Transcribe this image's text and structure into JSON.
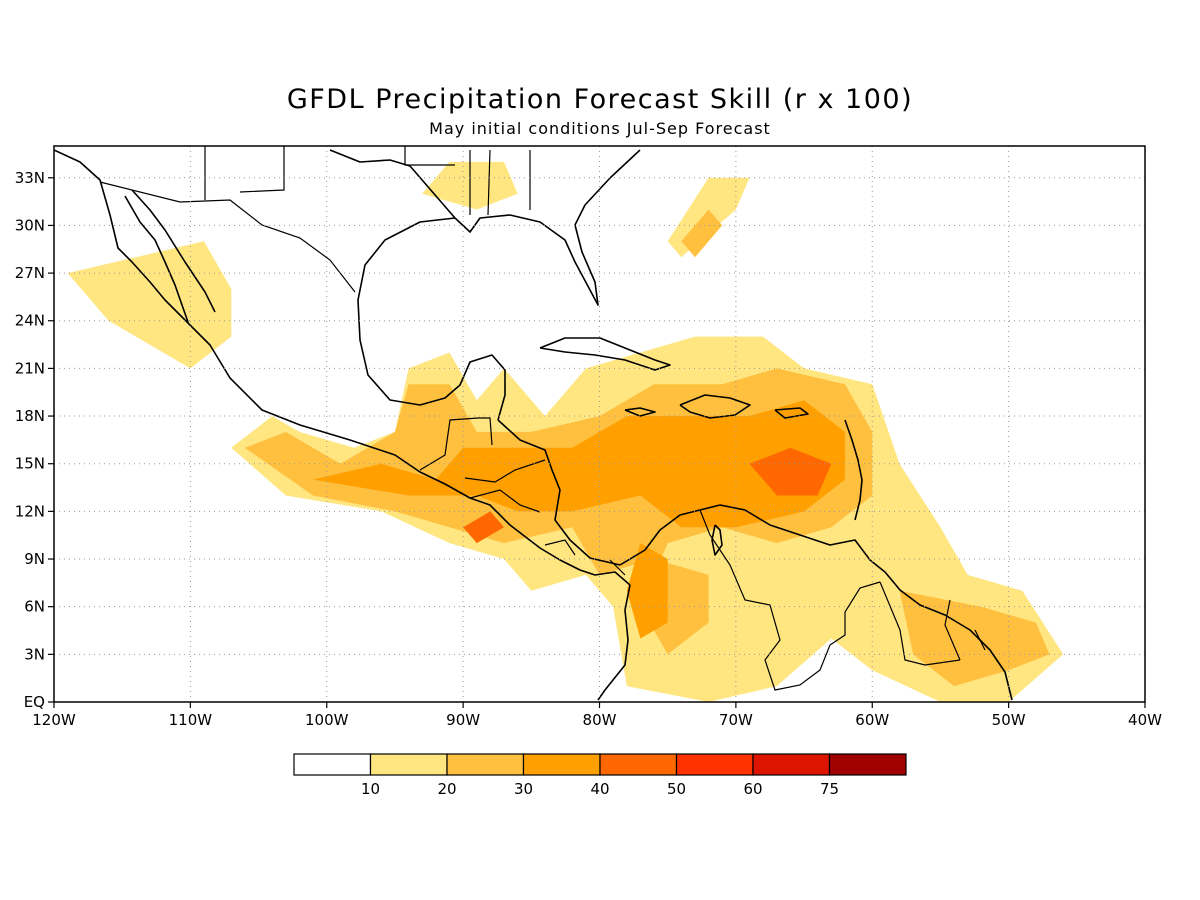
{
  "title": "GFDL Precipitation Forecast Skill (r x 100)",
  "subtitle": "May initial conditions  Jul-Sep Forecast",
  "map": {
    "lon_range": [
      -120,
      -40
    ],
    "lat_range": [
      0,
      35
    ],
    "lon_ticks": [
      {
        "value": -120,
        "label": "120W"
      },
      {
        "value": -110,
        "label": "110W"
      },
      {
        "value": -100,
        "label": "100W"
      },
      {
        "value": -90,
        "label": "90W"
      },
      {
        "value": -80,
        "label": "80W"
      },
      {
        "value": -70,
        "label": "70W"
      },
      {
        "value": -60,
        "label": "60W"
      },
      {
        "value": -50,
        "label": "50W"
      },
      {
        "value": -40,
        "label": "40W"
      }
    ],
    "lat_ticks": [
      {
        "value": 0,
        "label": "EQ"
      },
      {
        "value": 3,
        "label": "3N"
      },
      {
        "value": 6,
        "label": "6N"
      },
      {
        "value": 9,
        "label": "9N"
      },
      {
        "value": 12,
        "label": "12N"
      },
      {
        "value": 15,
        "label": "15N"
      },
      {
        "value": 18,
        "label": "18N"
      },
      {
        "value": 21,
        "label": "21N"
      },
      {
        "value": 24,
        "label": "24N"
      },
      {
        "value": 27,
        "label": "27N"
      },
      {
        "value": 30,
        "label": "30N"
      },
      {
        "value": 33,
        "label": "33N"
      }
    ],
    "grid": "dotted"
  },
  "colorbar": {
    "colors": [
      "#ffffff",
      "#ffe680",
      "#ffc040",
      "#ffa000",
      "#ff6800",
      "#ff3200",
      "#dc1400",
      "#a00000"
    ],
    "labels": [
      "10",
      "20",
      "30",
      "40",
      "50",
      "60",
      "75"
    ]
  },
  "skill_regions": [
    {
      "level": 1,
      "points": [
        [
          -107,
          16
        ],
        [
          -104,
          18
        ],
        [
          -102,
          17
        ],
        [
          -98,
          16
        ],
        [
          -95,
          17
        ],
        [
          -94,
          21
        ],
        [
          -91,
          22
        ],
        [
          -89,
          19
        ],
        [
          -87,
          21
        ],
        [
          -84,
          18
        ],
        [
          -81,
          21
        ],
        [
          -77,
          22
        ],
        [
          -73,
          23
        ],
        [
          -68,
          23
        ],
        [
          -65,
          21
        ],
        [
          -60,
          20
        ],
        [
          -58,
          15
        ],
        [
          -55,
          11
        ],
        [
          -53,
          8
        ],
        [
          -49,
          7
        ],
        [
          -46,
          3
        ],
        [
          -50,
          0
        ],
        [
          -55,
          0
        ],
        [
          -60,
          2
        ],
        [
          -63,
          4
        ],
        [
          -67,
          1
        ],
        [
          -72,
          0
        ],
        [
          -78,
          1
        ],
        [
          -79,
          6
        ],
        [
          -81,
          8
        ],
        [
          -85,
          7
        ],
        [
          -87,
          9
        ],
        [
          -91,
          10
        ],
        [
          -96,
          12
        ],
        [
          -103,
          13
        ],
        [
          -107,
          16
        ]
      ]
    },
    {
      "level": 1,
      "points": [
        [
          -119,
          27
        ],
        [
          -114,
          28
        ],
        [
          -109,
          29
        ],
        [
          -107,
          26
        ],
        [
          -107,
          23
        ],
        [
          -110,
          21
        ],
        [
          -112,
          22
        ],
        [
          -116,
          24
        ],
        [
          -119,
          27
        ]
      ]
    },
    {
      "level": 1,
      "points": [
        [
          -75,
          29
        ],
        [
          -72,
          33
        ],
        [
          -69,
          33
        ],
        [
          -70,
          31
        ],
        [
          -74,
          28
        ],
        [
          -75,
          29
        ]
      ]
    },
    {
      "level": 1,
      "points": [
        [
          -93,
          32
        ],
        [
          -89,
          31
        ],
        [
          -86,
          32
        ],
        [
          -87,
          34
        ],
        [
          -91,
          34
        ],
        [
          -93,
          32
        ]
      ]
    },
    {
      "level": 2,
      "points": [
        [
          -106,
          16
        ],
        [
          -103,
          17
        ],
        [
          -99,
          15
        ],
        [
          -95,
          17
        ],
        [
          -94,
          20
        ],
        [
          -91,
          20
        ],
        [
          -89,
          17
        ],
        [
          -85,
          17
        ],
        [
          -80,
          18
        ],
        [
          -76,
          20
        ],
        [
          -71,
          20
        ],
        [
          -67,
          21
        ],
        [
          -62,
          20
        ],
        [
          -60,
          17
        ],
        [
          -60,
          13
        ],
        [
          -63,
          11
        ],
        [
          -67,
          10
        ],
        [
          -71,
          11
        ],
        [
          -75,
          10
        ],
        [
          -77,
          6
        ],
        [
          -75,
          3
        ],
        [
          -72,
          5
        ],
        [
          -72,
          8
        ],
        [
          -76,
          9
        ],
        [
          -80,
          8
        ],
        [
          -82,
          11
        ],
        [
          -87,
          10
        ],
        [
          -91,
          11
        ],
        [
          -95,
          12
        ],
        [
          -101,
          13
        ],
        [
          -106,
          16
        ]
      ]
    },
    {
      "level": 2,
      "points": [
        [
          -58,
          7
        ],
        [
          -52,
          6
        ],
        [
          -48,
          5
        ],
        [
          -47,
          3
        ],
        [
          -50,
          2
        ],
        [
          -54,
          1
        ],
        [
          -57,
          3
        ],
        [
          -58,
          7
        ]
      ]
    },
    {
      "level": 2,
      "points": [
        [
          -74,
          29
        ],
        [
          -72,
          31
        ],
        [
          -71,
          30
        ],
        [
          -73,
          28
        ],
        [
          -74,
          29
        ]
      ]
    },
    {
      "level": 3,
      "points": [
        [
          -101,
          14
        ],
        [
          -96,
          15
        ],
        [
          -92,
          14
        ],
        [
          -90,
          16
        ],
        [
          -86,
          16
        ],
        [
          -82,
          16
        ],
        [
          -78,
          18
        ],
        [
          -73,
          18
        ],
        [
          -69,
          18
        ],
        [
          -65,
          19
        ],
        [
          -62,
          17
        ],
        [
          -62,
          14
        ],
        [
          -65,
          12
        ],
        [
          -70,
          11
        ],
        [
          -74,
          11
        ],
        [
          -77,
          13
        ],
        [
          -82,
          12
        ],
        [
          -86,
          12
        ],
        [
          -89,
          13
        ],
        [
          -94,
          13
        ],
        [
          -101,
          14
        ]
      ]
    },
    {
      "level": 3,
      "points": [
        [
          -77,
          10
        ],
        [
          -75,
          9
        ],
        [
          -75,
          5
        ],
        [
          -77,
          4
        ],
        [
          -78,
          7
        ],
        [
          -77,
          10
        ]
      ]
    },
    {
      "level": 4,
      "points": [
        [
          -69,
          15
        ],
        [
          -66,
          16
        ],
        [
          -63,
          15
        ],
        [
          -64,
          13
        ],
        [
          -67,
          13
        ],
        [
          -69,
          15
        ]
      ]
    },
    {
      "level": 4,
      "points": [
        [
          -90,
          11
        ],
        [
          -88,
          12
        ],
        [
          -87,
          11
        ],
        [
          -89,
          10
        ],
        [
          -90,
          11
        ]
      ]
    }
  ]
}
